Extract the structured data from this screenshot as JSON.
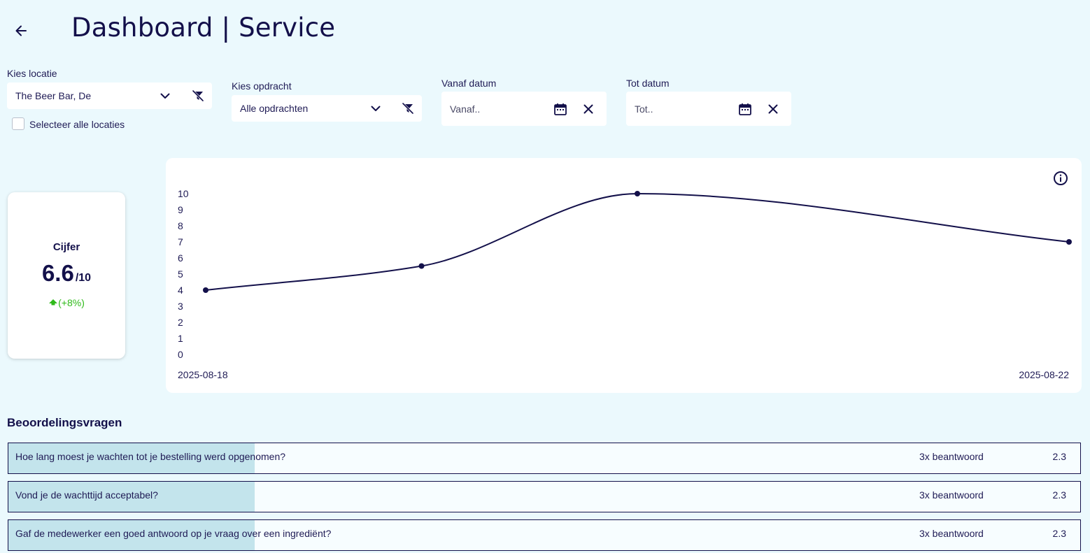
{
  "header": {
    "title": "Dashboard | Service",
    "back_icon": "arrow-left-icon"
  },
  "filters": {
    "location": {
      "label": "Kies locatie",
      "value": "The Beer Bar, De"
    },
    "select_all_label": "Selecteer alle locaties",
    "select_all_checked": false,
    "assignment": {
      "label": "Kies opdracht",
      "value": "Alle opdrachten"
    },
    "from_date": {
      "label": "Vanaf datum",
      "placeholder": "Vanaf.."
    },
    "to_date": {
      "label": "Tot datum",
      "placeholder": "Tot.."
    }
  },
  "score_card": {
    "title": "Cijfer",
    "value": "6.6",
    "max": "/10",
    "change": "(+8%)",
    "change_icon": "arrow-up-icon",
    "change_color": "#2fba1a"
  },
  "chart_data": {
    "type": "line",
    "x": [
      "2025-08-18",
      "2025-08-19",
      "2025-08-20",
      "2025-08-22"
    ],
    "series": [
      {
        "values": [
          4,
          5.5,
          10,
          7
        ]
      }
    ],
    "x_tick_labels": [
      "2025-08-18",
      "2025-08-22"
    ],
    "y_ticks": [
      0,
      1,
      2,
      3,
      4,
      5,
      6,
      7,
      8,
      9,
      10
    ],
    "ylim": [
      0,
      10
    ],
    "grid": false,
    "line_color": "#13104a",
    "info_icon": "info-icon"
  },
  "questions": {
    "title": "Beoordelingsvragen",
    "items": [
      {
        "text": "Hoe lang moest je wachten tot je bestelling werd opgenomen?",
        "count": "3x beantwoord",
        "score": "2.3",
        "fill": 0.23
      },
      {
        "text": "Vond je de wachttijd acceptabel?",
        "count": "3x beantwoord",
        "score": "2.3",
        "fill": 0.23
      },
      {
        "text": "Gaf de medewerker een goed antwoord op je vraag over een ingrediënt?",
        "count": "3x beantwoord",
        "score": "2.3",
        "fill": 0.23
      }
    ]
  }
}
